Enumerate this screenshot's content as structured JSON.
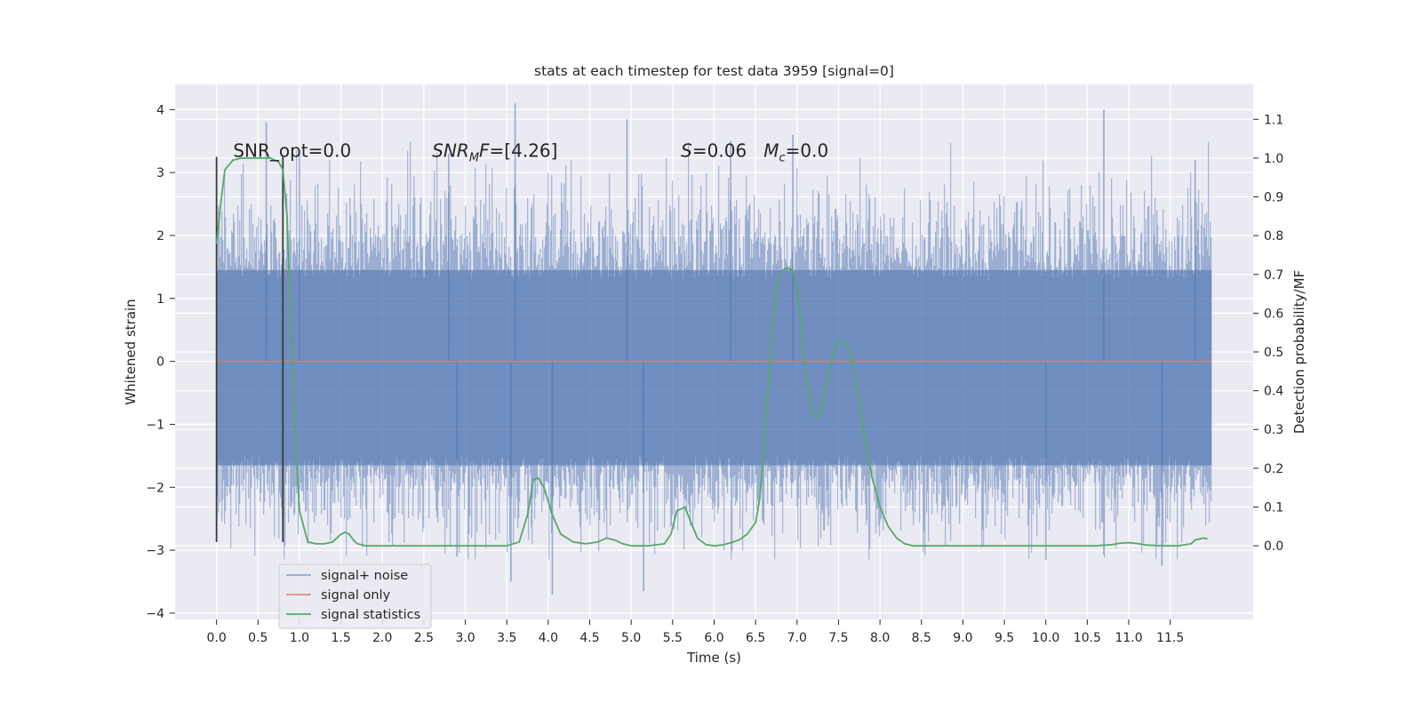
{
  "chart_data": {
    "type": "line",
    "title": "stats at each timestep for test data 3959 [signal=0]",
    "xlabel": "Time (s)",
    "ylabel": "Whitened strain",
    "ylabel_right": "Detection probability/MF",
    "xlim": [
      -0.5,
      12.5
    ],
    "ylim": [
      -4.1,
      4.4
    ],
    "ylim_right": [
      -0.19,
      1.19
    ],
    "x_ticks": [
      0.0,
      0.5,
      1.0,
      1.5,
      2.0,
      2.5,
      3.0,
      3.5,
      4.0,
      4.5,
      5.0,
      5.5,
      6.0,
      6.5,
      7.0,
      7.5,
      8.0,
      8.5,
      9.0,
      9.5,
      10.0,
      10.5,
      11.0,
      11.5
    ],
    "x_tick_labels": [
      "0.0",
      "0.5",
      "1.0",
      "1.5",
      "2.0",
      "2.5",
      "3.0",
      "3.5",
      "4.0",
      "4.5",
      "5.0",
      "5.5",
      "6.0",
      "6.5",
      "7.0",
      "7.5",
      "8.0",
      "8.5",
      "9.0",
      "9.5",
      "10.0",
      "10.5",
      "11.0",
      "11.5"
    ],
    "y_ticks": [
      -4,
      -3,
      -2,
      -1,
      0,
      1,
      2,
      3,
      4
    ],
    "y_tick_labels": [
      "−4",
      "−3",
      "−2",
      "−1",
      "0",
      "1",
      "2",
      "3",
      "4"
    ],
    "y_right_ticks": [
      0.0,
      0.1,
      0.2,
      0.3,
      0.4,
      0.5,
      0.6,
      0.7,
      0.8,
      0.9,
      1.0,
      1.1
    ],
    "y_right_tick_labels": [
      "0.0",
      "0.1",
      "0.2",
      "0.3",
      "0.4",
      "0.5",
      "0.6",
      "0.7",
      "0.8",
      "0.9",
      "1.0",
      "1.1"
    ],
    "grid": true,
    "legend_position": "lower-left",
    "series": [
      {
        "name": "signal+ noise",
        "color": "#4c72b0",
        "kind": "noise-band",
        "x_range": [
          0.0,
          12.0
        ],
        "core_range": [
          -1.65,
          1.45
        ],
        "tail_max": 4.1,
        "tail_min": -3.7,
        "peaks": [
          {
            "x": 0.6,
            "y": 3.8
          },
          {
            "x": 1.0,
            "y": 3.3
          },
          {
            "x": 2.8,
            "y": 3.3
          },
          {
            "x": 3.6,
            "y": 4.1
          },
          {
            "x": 4.95,
            "y": 3.85
          },
          {
            "x": 6.2,
            "y": 3.5
          },
          {
            "x": 6.95,
            "y": 3.6
          },
          {
            "x": 10.7,
            "y": 4.0
          },
          {
            "x": 11.8,
            "y": 3.2
          },
          {
            "x": 3.55,
            "y": -3.5
          },
          {
            "x": 4.05,
            "y": -3.7
          },
          {
            "x": 5.15,
            "y": -3.65
          },
          {
            "x": 10.0,
            "y": -3.15
          },
          {
            "x": 11.4,
            "y": -3.25
          },
          {
            "x": 2.9,
            "y": -3.1
          }
        ]
      },
      {
        "name": "signal only",
        "color": "#dd8452",
        "x": [
          0.0,
          12.0
        ],
        "y": [
          0.0,
          0.0
        ]
      },
      {
        "name": "signal statistics",
        "color": "#55a868",
        "axis": "right",
        "x": [
          0.0,
          0.05,
          0.1,
          0.2,
          0.3,
          0.4,
          0.5,
          0.6,
          0.65,
          0.7,
          0.75,
          0.8,
          0.85,
          0.9,
          0.95,
          1.0,
          1.1,
          1.2,
          1.3,
          1.4,
          1.5,
          1.55,
          1.6,
          1.65,
          1.7,
          1.8,
          1.9,
          2.0,
          2.5,
          3.0,
          3.5,
          3.65,
          3.75,
          3.82,
          3.88,
          3.95,
          4.05,
          4.15,
          4.3,
          4.45,
          4.6,
          4.7,
          4.8,
          4.9,
          5.0,
          5.2,
          5.4,
          5.48,
          5.55,
          5.6,
          5.65,
          5.72,
          5.8,
          5.9,
          6.0,
          6.1,
          6.2,
          6.3,
          6.4,
          6.5,
          6.55,
          6.6,
          6.65,
          6.7,
          6.75,
          6.8,
          6.85,
          6.9,
          6.95,
          7.0,
          7.05,
          7.1,
          7.15,
          7.2,
          7.25,
          7.3,
          7.35,
          7.4,
          7.45,
          7.5,
          7.55,
          7.6,
          7.65,
          7.7,
          7.75,
          7.8,
          7.85,
          7.9,
          8.0,
          8.1,
          8.2,
          8.3,
          8.4,
          8.6,
          9.0,
          10.0,
          10.6,
          10.8,
          10.9,
          11.0,
          11.1,
          11.2,
          11.4,
          11.6,
          11.75,
          11.8,
          11.9,
          11.95
        ],
        "y": [
          0.78,
          0.88,
          0.97,
          0.995,
          1.0,
          1.0,
          1.0,
          1.0,
          1.0,
          0.995,
          0.99,
          0.97,
          0.85,
          0.55,
          0.28,
          0.09,
          0.01,
          0.005,
          0.005,
          0.01,
          0.03,
          0.035,
          0.03,
          0.015,
          0.005,
          0.0,
          0.0,
          0.0,
          0.0,
          0.0,
          0.0,
          0.01,
          0.08,
          0.17,
          0.175,
          0.15,
          0.08,
          0.03,
          0.01,
          0.005,
          0.01,
          0.02,
          0.015,
          0.005,
          0.0,
          0.0,
          0.005,
          0.03,
          0.09,
          0.095,
          0.1,
          0.06,
          0.02,
          0.003,
          0.0,
          0.002,
          0.008,
          0.015,
          0.03,
          0.06,
          0.12,
          0.25,
          0.4,
          0.55,
          0.66,
          0.7,
          0.715,
          0.715,
          0.71,
          0.67,
          0.57,
          0.46,
          0.375,
          0.34,
          0.33,
          0.36,
          0.41,
          0.46,
          0.5,
          0.53,
          0.53,
          0.52,
          0.48,
          0.43,
          0.37,
          0.3,
          0.24,
          0.18,
          0.1,
          0.05,
          0.02,
          0.005,
          0.0,
          0.0,
          0.0,
          0.0,
          0.0,
          0.003,
          0.007,
          0.008,
          0.006,
          0.002,
          0.0,
          0.0,
          0.005,
          0.015,
          0.02,
          0.018
        ]
      }
    ],
    "vlines": [
      {
        "x": 0.0,
        "y": [
          -2.87,
          3.25
        ],
        "color": "#3a3a3a"
      },
      {
        "x": 0.8,
        "y": [
          -2.87,
          3.25
        ],
        "color": "#3a3a3a"
      }
    ],
    "annotations": [
      {
        "id": "snr-opt",
        "x": 0.2,
        "y": 3.25,
        "parts": [
          {
            "t": "SNR_opt=0.0"
          }
        ]
      },
      {
        "id": "snr-mf",
        "x": 2.6,
        "y": 3.25,
        "parts": [
          {
            "t": "SNR",
            "i": true
          },
          {
            "t": "M",
            "i": true,
            "sub": true
          },
          {
            "t": "F",
            "i": true
          },
          {
            "t": "=[4.26]"
          }
        ]
      },
      {
        "id": "s-mc",
        "x": 5.6,
        "y": 3.25,
        "parts": [
          {
            "t": "S",
            "i": true
          },
          {
            "t": "=0.06   "
          },
          {
            "t": "M",
            "i": true
          },
          {
            "t": "c",
            "i": true,
            "sub": true
          },
          {
            "t": "=0.0"
          }
        ]
      }
    ],
    "background": "#eaeaf2",
    "grid_color": "#ffffff"
  }
}
